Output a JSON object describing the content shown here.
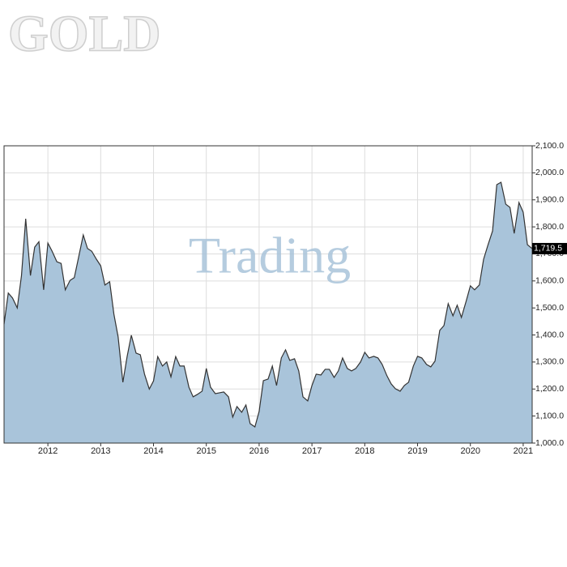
{
  "chart_data": {
    "type": "area",
    "title": "GOLD",
    "watermark": "Trading",
    "annotation": "1,719.5",
    "color": "#a9c4da",
    "line_color": "#333333",
    "grid": true,
    "xlim": [
      2011.17,
      2021.17
    ],
    "xticks": [
      2012,
      2013,
      2014,
      2015,
      2016,
      2017,
      2018,
      2019,
      2020,
      2021
    ],
    "ylim": [
      1000,
      2100
    ],
    "yticks": [
      {
        "value": 1000,
        "label": "1,000.0"
      },
      {
        "value": 1100,
        "label": "1,100.0"
      },
      {
        "value": 1200,
        "label": "1,200.0"
      },
      {
        "value": 1300,
        "label": "1,300.0"
      },
      {
        "value": 1400,
        "label": "1,400.0"
      },
      {
        "value": 1500,
        "label": "1,500.0"
      },
      {
        "value": 1600,
        "label": "1,600.0"
      },
      {
        "value": 1700,
        "label": "1,700.0"
      },
      {
        "value": 1800,
        "label": "1,800.0"
      },
      {
        "value": 1900,
        "label": "1,900.0"
      },
      {
        "value": 2000,
        "label": "2,000.0"
      },
      {
        "value": 2100,
        "label": "2,100.0"
      }
    ],
    "x": [
      2011.17,
      2011.25,
      2011.33,
      2011.42,
      2011.5,
      2011.58,
      2011.67,
      2011.75,
      2011.83,
      2011.92,
      2012,
      2012.08,
      2012.17,
      2012.25,
      2012.33,
      2012.42,
      2012.5,
      2012.58,
      2012.67,
      2012.75,
      2012.83,
      2012.92,
      2013,
      2013.08,
      2013.17,
      2013.25,
      2013.33,
      2013.42,
      2013.5,
      2013.58,
      2013.67,
      2013.75,
      2013.83,
      2013.92,
      2014,
      2014.08,
      2014.17,
      2014.25,
      2014.33,
      2014.42,
      2014.5,
      2014.58,
      2014.67,
      2014.75,
      2014.83,
      2014.92,
      2015,
      2015.08,
      2015.17,
      2015.25,
      2015.33,
      2015.42,
      2015.5,
      2015.58,
      2015.67,
      2015.75,
      2015.83,
      2015.92,
      2016,
      2016.08,
      2016.17,
      2016.25,
      2016.33,
      2016.42,
      2016.5,
      2016.58,
      2016.67,
      2016.75,
      2016.83,
      2016.92,
      2017,
      2017.08,
      2017.17,
      2017.25,
      2017.33,
      2017.42,
      2017.5,
      2017.58,
      2017.67,
      2017.75,
      2017.83,
      2017.92,
      2018,
      2018.08,
      2018.17,
      2018.25,
      2018.33,
      2018.42,
      2018.5,
      2018.58,
      2018.67,
      2018.75,
      2018.83,
      2018.92,
      2019,
      2019.08,
      2019.17,
      2019.25,
      2019.33,
      2019.42,
      2019.5,
      2019.58,
      2019.67,
      2019.75,
      2019.83,
      2019.92,
      2020,
      2020.08,
      2020.17,
      2020.25,
      2020.33,
      2020.42,
      2020.5,
      2020.58,
      2020.67,
      2020.75,
      2020.83,
      2020.92,
      2021,
      2021.08,
      2021.17
    ],
    "values": [
      1440,
      1555,
      1537,
      1500,
      1620,
      1830,
      1620,
      1725,
      1745,
      1567,
      1740,
      1710,
      1671,
      1665,
      1567,
      1602,
      1612,
      1686,
      1770,
      1720,
      1710,
      1680,
      1656,
      1585,
      1597,
      1477,
      1393,
      1225,
      1320,
      1399,
      1333,
      1327,
      1255,
      1200,
      1230,
      1320,
      1285,
      1300,
      1245,
      1320,
      1285,
      1285,
      1207,
      1171,
      1180,
      1192,
      1276,
      1207,
      1183,
      1186,
      1189,
      1171,
      1096,
      1135,
      1114,
      1141,
      1072,
      1060,
      1117,
      1231,
      1237,
      1285,
      1213,
      1315,
      1345,
      1306,
      1312,
      1267,
      1171,
      1156,
      1213,
      1255,
      1252,
      1273,
      1273,
      1243,
      1267,
      1315,
      1276,
      1267,
      1276,
      1300,
      1336,
      1315,
      1321,
      1315,
      1291,
      1249,
      1219,
      1201,
      1192,
      1213,
      1225,
      1285,
      1321,
      1315,
      1291,
      1282,
      1303,
      1417,
      1435,
      1516,
      1471,
      1510,
      1465,
      1525,
      1582,
      1567,
      1585,
      1680,
      1731,
      1785,
      1956,
      1965,
      1884,
      1872,
      1776,
      1890,
      1854,
      1734,
      1719.5
    ]
  }
}
